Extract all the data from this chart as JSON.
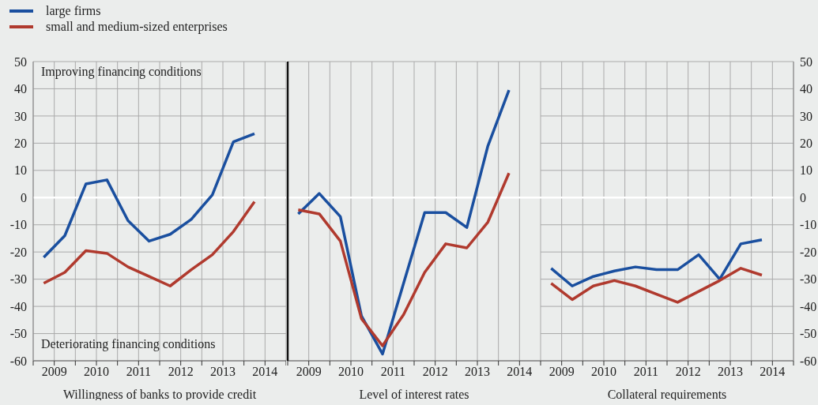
{
  "chart_data": [
    {
      "type": "line",
      "xlabel": "Willingness of banks to provide credit",
      "legend": "top left",
      "marker": "none",
      "line_style": "solid",
      "grid": true,
      "annotations": [
        "Improving financing conditions",
        "Deteriorating financing conditions"
      ],
      "x": [
        2009.25,
        2009.75,
        2010.25,
        2010.75,
        2011.25,
        2011.75,
        2012.25,
        2012.75,
        2013.25,
        2013.75,
        2014.25
      ],
      "xlim": [
        2009,
        2015
      ],
      "xticks": [
        {
          "value": 2009,
          "label": null
        },
        {
          "value": 2009.5,
          "label": "2009"
        },
        {
          "value": 2010,
          "label": null
        },
        {
          "value": 2010.5,
          "label": "2010"
        },
        {
          "value": 2011,
          "label": null
        },
        {
          "value": 2011.5,
          "label": "2011"
        },
        {
          "value": 2012,
          "label": null
        },
        {
          "value": 2012.5,
          "label": "2012"
        },
        {
          "value": 2013,
          "label": null
        },
        {
          "value": 2013.5,
          "label": "2013"
        },
        {
          "value": 2014,
          "label": null
        },
        {
          "value": 2014.5,
          "label": "2014"
        },
        {
          "value": 2015,
          "label": null
        }
      ],
      "ylim": [
        -60,
        50
      ],
      "yticks": [
        -60,
        -50,
        -40,
        -30,
        -20,
        -10,
        0,
        10,
        20,
        30,
        40,
        50
      ],
      "ref_lines": [
        {
          "axis": "y",
          "value": 0,
          "color": "#ffffff"
        }
      ],
      "series": [
        {
          "name": "large firms",
          "color": "#1a4f9f",
          "values": [
            -22,
            -14,
            5,
            6.5,
            -8.5,
            -16,
            -13.5,
            -8,
            1,
            20.5,
            23.5
          ]
        },
        {
          "name": "small and medium-sized enterprises",
          "color": "#b03a2e",
          "values": [
            -31.5,
            -27.5,
            -19.5,
            -20.5,
            -25.5,
            -29,
            -32.5,
            -26.5,
            -21,
            -12.5,
            -1.5
          ]
        }
      ]
    },
    {
      "type": "line",
      "xlabel": "Level of interest rates",
      "marker": "none",
      "line_style": "solid",
      "grid": true,
      "tick_labels": "x",
      "x": [
        2009.25,
        2009.75,
        2010.25,
        2010.75,
        2011.25,
        2011.75,
        2012.25,
        2012.75,
        2013.25,
        2013.75,
        2014.25
      ],
      "xlim": [
        2009,
        2015
      ],
      "xticks": [
        {
          "value": 2009,
          "label": null
        },
        {
          "value": 2009.5,
          "label": "2009"
        },
        {
          "value": 2010,
          "label": null
        },
        {
          "value": 2010.5,
          "label": "2010"
        },
        {
          "value": 2011,
          "label": null
        },
        {
          "value": 2011.5,
          "label": "2011"
        },
        {
          "value": 2012,
          "label": null
        },
        {
          "value": 2012.5,
          "label": "2012"
        },
        {
          "value": 2013,
          "label": null
        },
        {
          "value": 2013.5,
          "label": "2013"
        },
        {
          "value": 2014,
          "label": null
        },
        {
          "value": 2014.5,
          "label": "2014"
        },
        {
          "value": 2015,
          "label": null
        }
      ],
      "ylim": [
        -60,
        50
      ],
      "yticks": [
        -60,
        -50,
        -40,
        -30,
        -20,
        -10,
        0,
        10,
        20,
        30,
        40,
        50
      ],
      "ref_lines": [
        {
          "axis": "y",
          "value": 0,
          "color": "#ffffff"
        }
      ],
      "series": [
        {
          "color": "#1a4f9f",
          "values": [
            -6,
            1.5,
            -7,
            -43.5,
            -57.5,
            -31.5,
            -5.5,
            -5.5,
            -11,
            19,
            39.5
          ]
        },
        {
          "color": "#b03a2e",
          "values": [
            -4.5,
            -6,
            -16,
            -44.5,
            -54.5,
            -43,
            -27.5,
            -17,
            -18.5,
            -9,
            9
          ]
        }
      ]
    },
    {
      "type": "line",
      "xlabel": "Collateral requirements",
      "marker": "none",
      "line_style": "solid",
      "grid": true,
      "x": [
        2009.25,
        2009.75,
        2010.25,
        2010.75,
        2011.25,
        2011.75,
        2012.25,
        2012.75,
        2013.25,
        2013.75,
        2014.25
      ],
      "xlim": [
        2009,
        2015
      ],
      "xticks": [
        {
          "value": 2009,
          "label": null
        },
        {
          "value": 2009.5,
          "label": "2009"
        },
        {
          "value": 2010,
          "label": null
        },
        {
          "value": 2010.5,
          "label": "2010"
        },
        {
          "value": 2011,
          "label": null
        },
        {
          "value": 2011.5,
          "label": "2011"
        },
        {
          "value": 2012,
          "label": null
        },
        {
          "value": 2012.5,
          "label": "2012"
        },
        {
          "value": 2013,
          "label": null
        },
        {
          "value": 2013.5,
          "label": "2013"
        },
        {
          "value": 2014,
          "label": null
        },
        {
          "value": 2014.5,
          "label": "2014"
        },
        {
          "value": 2015,
          "label": null
        }
      ],
      "ylim": [
        -60,
        50
      ],
      "yticks": [
        -60,
        -50,
        -40,
        -30,
        -20,
        -10,
        0,
        10,
        20,
        30,
        40,
        50
      ],
      "ref_lines": [
        {
          "axis": "y",
          "value": 0,
          "color": "#ffffff"
        }
      ],
      "series": [
        {
          "color": "#1a4f9f",
          "values": [
            -26,
            -32.5,
            -29,
            -27,
            -25.5,
            -26.5,
            -26.5,
            -21,
            -30,
            -17,
            -15.5
          ]
        },
        {
          "color": "#b03a2e",
          "values": [
            -31.5,
            -37.5,
            -32.5,
            -30.5,
            -32.5,
            -35.5,
            -38.5,
            -34.5,
            -30.5,
            -26,
            -28.5
          ]
        }
      ]
    }
  ]
}
